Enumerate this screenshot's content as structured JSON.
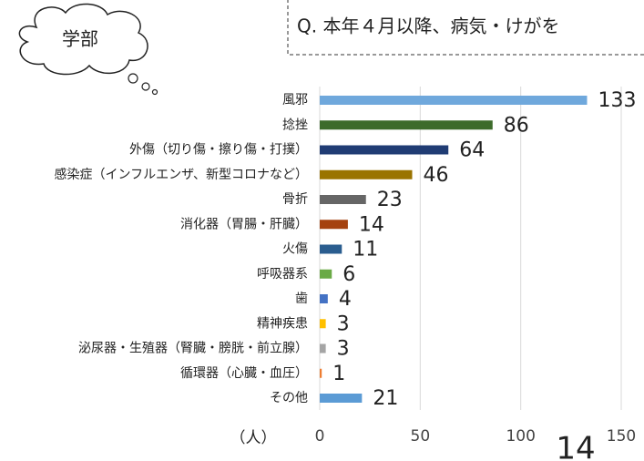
{
  "badge": "学部",
  "question": "Q. 本年４月以降、病気・けがを",
  "page_number": "14",
  "chart_data": {
    "type": "barh",
    "categories": [
      "風邪",
      "捻挫",
      "外傷（切り傷・擦り傷・打撲）",
      "感染症（インフルエンザ、新型コロナなど）",
      "骨折",
      "消化器（胃腸・肝臓）",
      "火傷",
      "呼吸器系",
      "歯",
      "精神疾患",
      "泌尿器・生殖器（腎臓・膀胱・前立腺）",
      "循環器（心臓・血圧）",
      "その他"
    ],
    "values": [
      133,
      86,
      64,
      46,
      23,
      14,
      11,
      6,
      4,
      3,
      3,
      1,
      21
    ],
    "colors": [
      "#6fa8dc",
      "#3d6b2b",
      "#203c74",
      "#9a7400",
      "#666666",
      "#a5420f",
      "#2a5d8f",
      "#6aaa46",
      "#4472c4",
      "#ffc000",
      "#a5a5a5",
      "#ed7d31",
      "#5b9bd5"
    ],
    "xlabel": "（人）",
    "xlim": [
      0,
      150
    ],
    "xticks": [
      0,
      50,
      100,
      150
    ],
    "grid": true
  }
}
